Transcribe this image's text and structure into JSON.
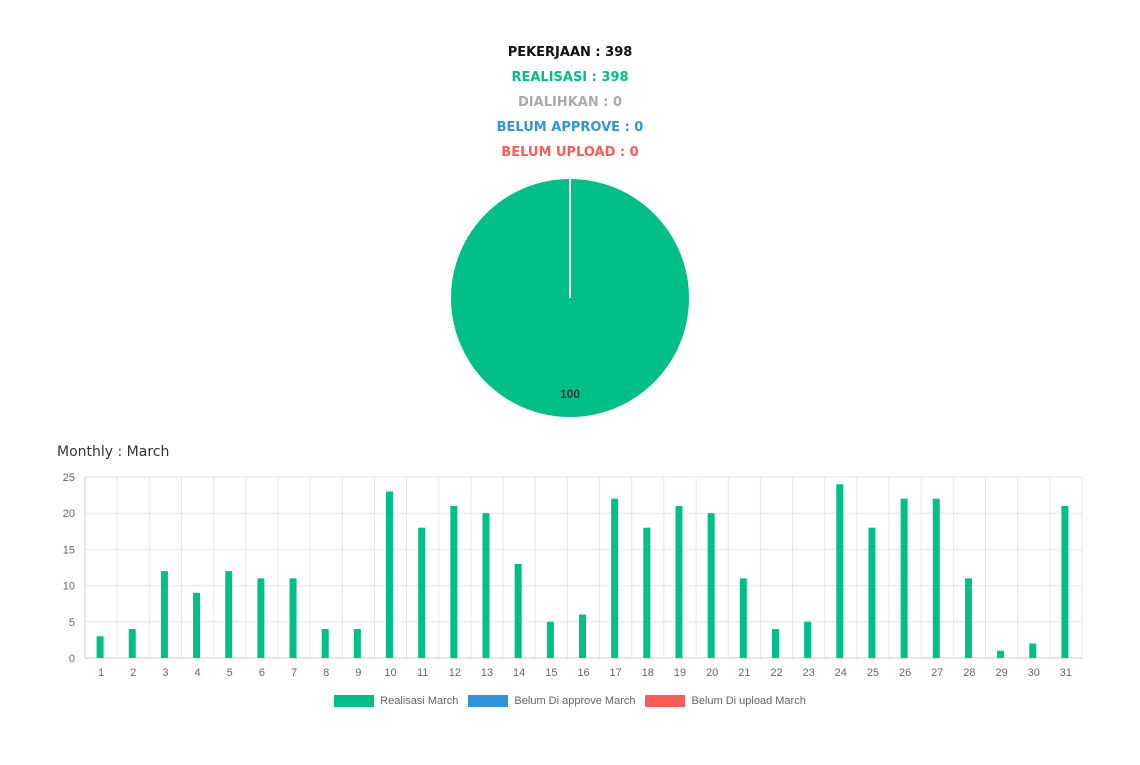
{
  "summary": {
    "pekerjaan": "PEKERJAAN : 398",
    "realisasi": "REALISASI : 398",
    "dialihkan": "DIALIHKAN : 0",
    "belum_approve": "BELUM APPROVE : 0",
    "belum_upload": "BELUM UPLOAD : 0"
  },
  "colors": {
    "realisasi": "#00bf87",
    "dialihkan": "#aaaaaa",
    "belum_approve": "#2f96dd",
    "belum_upload": "#ff5a5a",
    "text": "#111111"
  },
  "chart_data": [
    {
      "type": "pie",
      "slices": [
        {
          "label": "Realisasi",
          "value": 100,
          "color": "#00bf87"
        }
      ],
      "data_label": "100"
    },
    {
      "type": "bar",
      "title": "Monthly : March",
      "categories": [
        "1",
        "2",
        "3",
        "4",
        "5",
        "6",
        "7",
        "8",
        "9",
        "10",
        "11",
        "12",
        "13",
        "14",
        "15",
        "16",
        "17",
        "18",
        "19",
        "20",
        "21",
        "22",
        "23",
        "24",
        "25",
        "26",
        "27",
        "28",
        "29",
        "30",
        "31"
      ],
      "series": [
        {
          "name": "Realisasi March",
          "color": "#00bf87",
          "values": [
            3,
            4,
            12,
            9,
            12,
            11,
            11,
            4,
            4,
            23,
            18,
            21,
            20,
            13,
            5,
            6,
            22,
            18,
            21,
            20,
            11,
            4,
            5,
            24,
            18,
            22,
            22,
            11,
            1,
            2,
            21
          ]
        },
        {
          "name": "Belum Di approve March",
          "color": "#2f96dd",
          "values": [
            0,
            0,
            0,
            0,
            0,
            0,
            0,
            0,
            0,
            0,
            0,
            0,
            0,
            0,
            0,
            0,
            0,
            0,
            0,
            0,
            0,
            0,
            0,
            0,
            0,
            0,
            0,
            0,
            0,
            0,
            0
          ]
        },
        {
          "name": "Belum Di upload March",
          "color": "#ff5a5a",
          "values": [
            0,
            0,
            0,
            0,
            0,
            0,
            0,
            0,
            0,
            0,
            0,
            0,
            0,
            0,
            0,
            0,
            0,
            0,
            0,
            0,
            0,
            0,
            0,
            0,
            0,
            0,
            0,
            0,
            0,
            0,
            0
          ]
        }
      ],
      "ylim": [
        0,
        25
      ],
      "yticks": [
        0,
        5,
        10,
        15,
        20,
        25
      ],
      "grid": true,
      "legend": "bottom"
    }
  ]
}
